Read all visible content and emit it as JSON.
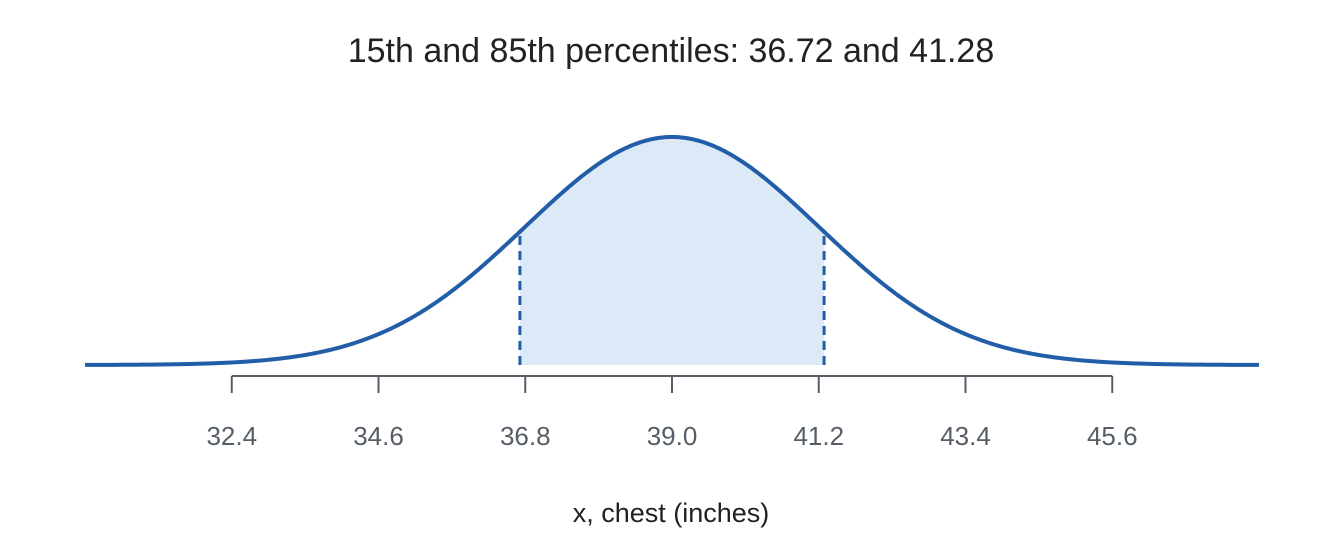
{
  "chart_data": {
    "type": "area",
    "title": "15th and 85th percentiles: 36.72 and 41.28",
    "xlabel": "x, chest (inches)",
    "ylabel": "",
    "distribution": "normal",
    "mean": 39.0,
    "sd": 2.2,
    "xlim": [
      30.2,
      47.8
    ],
    "ticks": [
      32.4,
      34.6,
      36.8,
      39.0,
      41.2,
      43.4,
      45.6
    ],
    "tick_labels": [
      "32.4",
      "34.6",
      "36.8",
      "39.0",
      "41.2",
      "43.4",
      "45.6"
    ],
    "percentiles": [
      {
        "name": "15th",
        "value": 36.72
      },
      {
        "name": "85th",
        "value": 41.28
      }
    ],
    "shaded_region": [
      36.72,
      41.28
    ],
    "grid": false
  },
  "colors": {
    "curve": "#225ea8",
    "fill": "#dce9f6",
    "axis": "#555d66"
  }
}
